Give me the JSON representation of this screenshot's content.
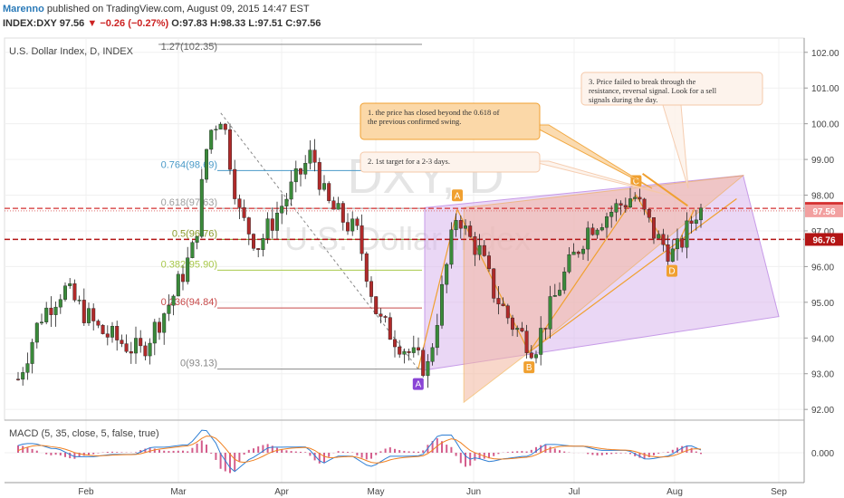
{
  "header": {
    "author": "Marenno",
    "published": "published on TradingView.com, August 09, 2015 14:47 EST",
    "symbol": "INDEX:DXY",
    "last": "97.56",
    "change_arrow": "▼",
    "change": "−0.26 (−0.27%)",
    "ohlc": {
      "o": "97.83",
      "h": "98.33",
      "l": "97.51",
      "c": "97.56"
    }
  },
  "chart_data": {
    "type": "candlestick",
    "pane_title": "U.S. Dollar Index, D, INDEX",
    "watermark": {
      "symbol": "DXY, D",
      "name": "U.S. Dollar Index"
    },
    "ylim": [
      91.7,
      102.4
    ],
    "y_ticks": [
      "102.00",
      "101.00",
      "100.00",
      "99.00",
      "98.00",
      "97.00",
      "96.00",
      "95.00",
      "94.00",
      "93.00",
      "92.00"
    ],
    "x_ticks": [
      "Feb",
      "Mar",
      "Apr",
      "May",
      "Jun",
      "Jul",
      "Aug",
      "Sep"
    ],
    "price_tags": [
      {
        "value": "97.63",
        "price": 97.63,
        "color": "#d43030"
      },
      {
        "value": "97.56",
        "price": 97.56,
        "color": "#f2a0a0"
      },
      {
        "value": "96.76",
        "price": 96.76,
        "color": "#b31515"
      }
    ],
    "fib_levels": [
      {
        "label": "1.27(102.35)",
        "price": 102.35,
        "color": "#888888"
      },
      {
        "label": "0.764(98.69)",
        "price": 98.69,
        "color": "#4a9ac8"
      },
      {
        "label": "0.618(97.63)",
        "price": 97.63,
        "color": "#9e9e9e"
      },
      {
        "label": "0.5(96.76)",
        "price": 96.76,
        "color": "#8a9a2a"
      },
      {
        "label": "0.382(95.90)",
        "price": 95.9,
        "color": "#a8c84a"
      },
      {
        "label": "0.236(94.84)",
        "price": 94.84,
        "color": "#c84a4a"
      },
      {
        "label": "0(93.13)",
        "price": 93.13,
        "color": "#888888"
      }
    ],
    "points": [
      {
        "label": "A",
        "date": "May 14",
        "price": 93.13,
        "color": "#8a45d6"
      },
      {
        "label": "A",
        "date": "May 26",
        "price": 97.6,
        "color": "#f0a030"
      },
      {
        "label": "B",
        "date": "Jun 18",
        "price": 93.6,
        "color": "#f0a030"
      },
      {
        "label": "C",
        "date": "Jul 20",
        "price": 98.0,
        "color": "#f0a030"
      },
      {
        "label": "D",
        "date": "Jul 31",
        "price": 96.3,
        "color": "#f0a030"
      }
    ],
    "annotations": [
      "1. the price has closed beyond the 0.618 of the previous confirmed swing.",
      "2. 1st target for a 2-3 days.",
      "3. Price failed to break through the resistance, reversal signal. Look for a sell signals during the day."
    ],
    "macd": {
      "title": "MACD (5, 35, close, 5, false, true)",
      "tick": "0.000"
    },
    "colors": {
      "up": "#3a8a3a",
      "down": "#b02a2a",
      "grid": "#eeeeee"
    }
  }
}
